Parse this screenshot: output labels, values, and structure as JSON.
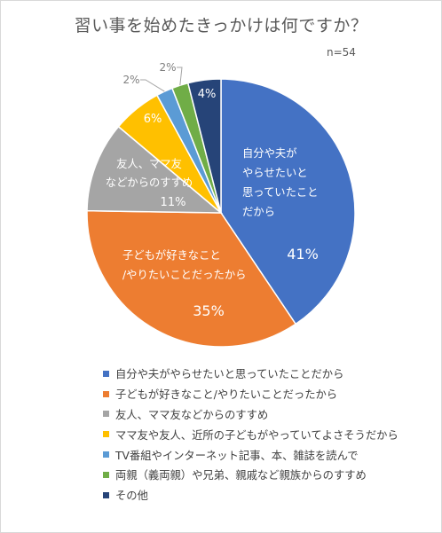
{
  "title": "習い事を始めたきっかけは何ですか？",
  "note": "n=54",
  "chart_data": {
    "type": "pie",
    "categories": [
      "自分や夫がやらせたいと思っていたことだから",
      "子どもが好きなこと/やりたいことだったから",
      "友人、ママ友などからのすすめ",
      "ママ友や友人、近所の子どもがやっていてよさそうだから",
      "TV番組やインターネット記事、本、雑誌を読んで",
      "両親（義両親）や兄弟、親戚など親族からのすすめ",
      "その他"
    ],
    "values": [
      41,
      35,
      11,
      6,
      2,
      2,
      4
    ],
    "value_labels": [
      "41%",
      "35%",
      "11%",
      "6%",
      "2%",
      "2%",
      "4%"
    ],
    "slice_labels": [
      [
        "自分や夫が",
        "やらせたいと",
        "思っていたこと",
        "だから"
      ],
      [
        "子どもが好きなこと",
        "/やりたいことだったから"
      ],
      [
        "友人、ママ友",
        "などからのすすめ"
      ],
      [],
      [],
      [],
      []
    ],
    "colors": [
      "#4472c4",
      "#ed7d31",
      "#a5a5a5",
      "#ffc000",
      "#5b9bd5",
      "#70ad47",
      "#264478"
    ],
    "legend_position": "bottom"
  }
}
